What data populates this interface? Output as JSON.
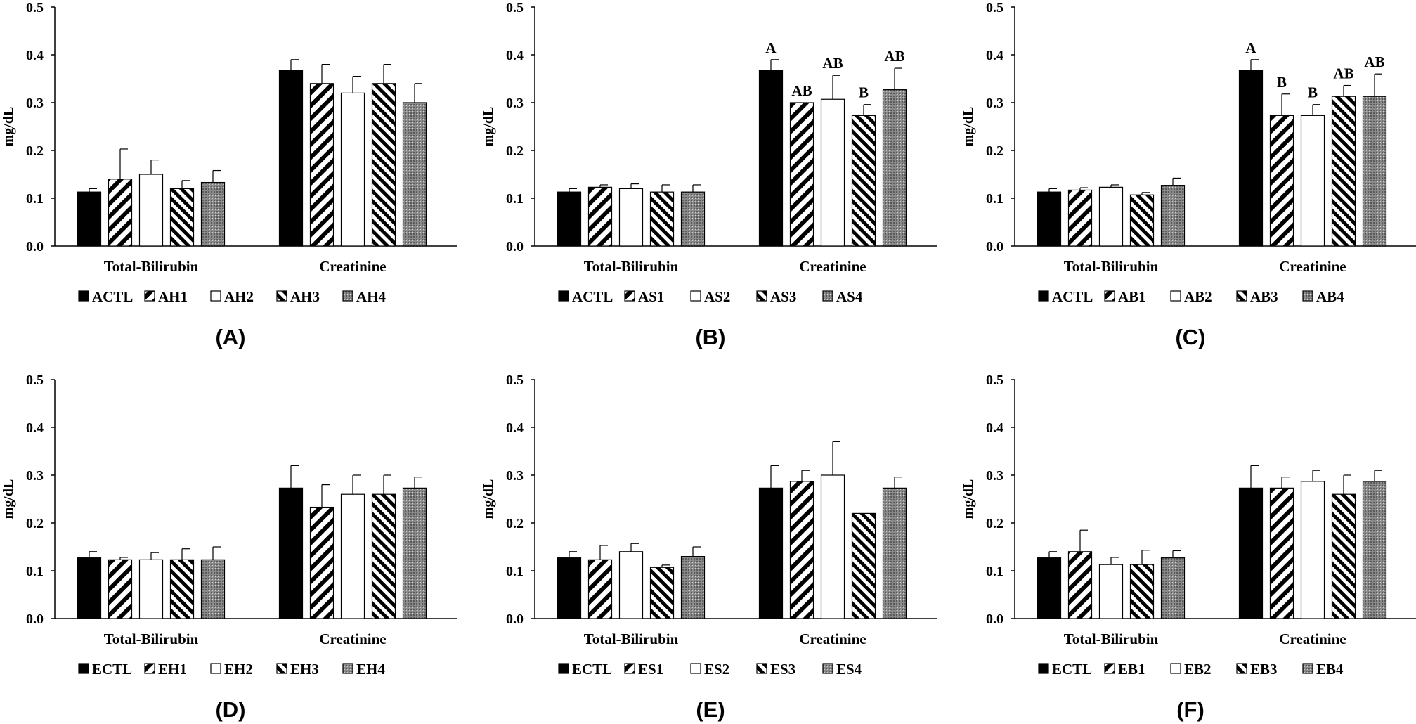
{
  "figure": {
    "colors": {
      "ink": "#000000",
      "background": "#ffffff",
      "dotted_fill": "#8a8a8a"
    },
    "pattern_names": [
      "solid-black",
      "wide-diagonal-forward",
      "white",
      "diagonal-backward",
      "dotted-gray"
    ]
  },
  "chart_data": [
    {
      "id": "A",
      "type": "bar",
      "title": "(A)",
      "ylabel": "mg/dL",
      "ylim": [
        0,
        0.5
      ],
      "yticks": [
        "0.0",
        "0.1",
        "0.2",
        "0.3",
        "0.4",
        "0.5"
      ],
      "categories": [
        "Total-Bilirubin",
        "Creatinine"
      ],
      "series": [
        {
          "name": "ACTL",
          "values": [
            0.113,
            0.367
          ],
          "errors": [
            0.007,
            0.023
          ],
          "labels": [
            "",
            ""
          ]
        },
        {
          "name": "AH1",
          "values": [
            0.14,
            0.34
          ],
          "errors": [
            0.063,
            0.04
          ],
          "labels": [
            "",
            ""
          ]
        },
        {
          "name": "AH2",
          "values": [
            0.15,
            0.32
          ],
          "errors": [
            0.03,
            0.035
          ],
          "labels": [
            "",
            ""
          ]
        },
        {
          "name": "AH3",
          "values": [
            0.12,
            0.34
          ],
          "errors": [
            0.017,
            0.04
          ],
          "labels": [
            "",
            ""
          ]
        },
        {
          "name": "AH4",
          "values": [
            0.133,
            0.3
          ],
          "errors": [
            0.025,
            0.04
          ],
          "labels": [
            "",
            ""
          ]
        }
      ]
    },
    {
      "id": "B",
      "type": "bar",
      "title": "(B)",
      "ylabel": "mg/dL",
      "ylim": [
        0,
        0.5
      ],
      "yticks": [
        "0.0",
        "0.1",
        "0.2",
        "0.3",
        "0.4",
        "0.5"
      ],
      "categories": [
        "Total-Bilirubin",
        "Creatinine"
      ],
      "series": [
        {
          "name": "ACTL",
          "values": [
            0.113,
            0.367
          ],
          "errors": [
            0.007,
            0.023
          ],
          "labels": [
            "",
            "A"
          ]
        },
        {
          "name": "AS1",
          "values": [
            0.123,
            0.3
          ],
          "errors": [
            0.005,
            0.0
          ],
          "labels": [
            "",
            "AB"
          ]
        },
        {
          "name": "AS2",
          "values": [
            0.12,
            0.307
          ],
          "errors": [
            0.01,
            0.05
          ],
          "labels": [
            "",
            "AB"
          ]
        },
        {
          "name": "AS3",
          "values": [
            0.113,
            0.273
          ],
          "errors": [
            0.015,
            0.023
          ],
          "labels": [
            "",
            "B"
          ]
        },
        {
          "name": "AS4",
          "values": [
            0.113,
            0.327
          ],
          "errors": [
            0.015,
            0.045
          ],
          "labels": [
            "",
            "AB"
          ]
        }
      ]
    },
    {
      "id": "C",
      "type": "bar",
      "title": "(C)",
      "ylabel": "mg/dL",
      "ylim": [
        0,
        0.5
      ],
      "yticks": [
        "0.0",
        "0.1",
        "0.2",
        "0.3",
        "0.4",
        "0.5"
      ],
      "categories": [
        "Total-Bilirubin",
        "Creatinine"
      ],
      "series": [
        {
          "name": "ACTL",
          "values": [
            0.113,
            0.367
          ],
          "errors": [
            0.007,
            0.023
          ],
          "labels": [
            "",
            "A"
          ]
        },
        {
          "name": "AB1",
          "values": [
            0.117,
            0.273
          ],
          "errors": [
            0.005,
            0.045
          ],
          "labels": [
            "",
            "B"
          ]
        },
        {
          "name": "AB2",
          "values": [
            0.123,
            0.273
          ],
          "errors": [
            0.005,
            0.023
          ],
          "labels": [
            "",
            "B"
          ]
        },
        {
          "name": "AB3",
          "values": [
            0.107,
            0.313
          ],
          "errors": [
            0.005,
            0.023
          ],
          "labels": [
            "",
            "AB"
          ]
        },
        {
          "name": "AB4",
          "values": [
            0.127,
            0.313
          ],
          "errors": [
            0.015,
            0.047
          ],
          "labels": [
            "",
            "AB"
          ]
        }
      ]
    },
    {
      "id": "D",
      "type": "bar",
      "title": "(D)",
      "ylabel": "mg/dL",
      "ylim": [
        0,
        0.5
      ],
      "yticks": [
        "0.0",
        "0.1",
        "0.2",
        "0.3",
        "0.4",
        "0.5"
      ],
      "categories": [
        "Total-Bilirubin",
        "Creatinine"
      ],
      "series": [
        {
          "name": "ECTL",
          "values": [
            0.127,
            0.273
          ],
          "errors": [
            0.013,
            0.047
          ],
          "labels": [
            "",
            ""
          ]
        },
        {
          "name": "EH1",
          "values": [
            0.123,
            0.233
          ],
          "errors": [
            0.005,
            0.047
          ],
          "labels": [
            "",
            ""
          ]
        },
        {
          "name": "EH2",
          "values": [
            0.123,
            0.26
          ],
          "errors": [
            0.015,
            0.04
          ],
          "labels": [
            "",
            ""
          ]
        },
        {
          "name": "EH3",
          "values": [
            0.123,
            0.26
          ],
          "errors": [
            0.023,
            0.04
          ],
          "labels": [
            "",
            ""
          ]
        },
        {
          "name": "EH4",
          "values": [
            0.123,
            0.273
          ],
          "errors": [
            0.027,
            0.023
          ],
          "labels": [
            "",
            ""
          ]
        }
      ]
    },
    {
      "id": "E",
      "type": "bar",
      "title": "(E)",
      "ylabel": "mg/dL",
      "ylim": [
        0,
        0.5
      ],
      "yticks": [
        "0.0",
        "0.1",
        "0.2",
        "0.3",
        "0.4",
        "0.5"
      ],
      "categories": [
        "Total-Bilirubin",
        "Creatinine"
      ],
      "series": [
        {
          "name": "ECTL",
          "values": [
            0.127,
            0.273
          ],
          "errors": [
            0.013,
            0.047
          ],
          "labels": [
            "",
            ""
          ]
        },
        {
          "name": "ES1",
          "values": [
            0.123,
            0.287
          ],
          "errors": [
            0.03,
            0.023
          ],
          "labels": [
            "",
            ""
          ]
        },
        {
          "name": "ES2",
          "values": [
            0.14,
            0.3
          ],
          "errors": [
            0.017,
            0.07
          ],
          "labels": [
            "",
            ""
          ]
        },
        {
          "name": "ES3",
          "values": [
            0.107,
            0.22
          ],
          "errors": [
            0.005,
            0.0
          ],
          "labels": [
            "",
            ""
          ]
        },
        {
          "name": "ES4",
          "values": [
            0.13,
            0.273
          ],
          "errors": [
            0.02,
            0.023
          ],
          "labels": [
            "",
            ""
          ]
        }
      ]
    },
    {
      "id": "F",
      "type": "bar",
      "title": "(F)",
      "ylabel": "mg/dL",
      "ylim": [
        0,
        0.5
      ],
      "yticks": [
        "0.0",
        "0.1",
        "0.2",
        "0.3",
        "0.4",
        "0.5"
      ],
      "categories": [
        "Total-Bilirubin",
        "Creatinine"
      ],
      "series": [
        {
          "name": "ECTL",
          "values": [
            0.127,
            0.273
          ],
          "errors": [
            0.013,
            0.047
          ],
          "labels": [
            "",
            ""
          ]
        },
        {
          "name": "EB1",
          "values": [
            0.14,
            0.273
          ],
          "errors": [
            0.045,
            0.023
          ],
          "labels": [
            "",
            ""
          ]
        },
        {
          "name": "EB2",
          "values": [
            0.113,
            0.287
          ],
          "errors": [
            0.015,
            0.023
          ],
          "labels": [
            "",
            ""
          ]
        },
        {
          "name": "EB3",
          "values": [
            0.113,
            0.26
          ],
          "errors": [
            0.03,
            0.04
          ],
          "labels": [
            "",
            ""
          ]
        },
        {
          "name": "EB4",
          "values": [
            0.127,
            0.287
          ],
          "errors": [
            0.015,
            0.023
          ],
          "labels": [
            "",
            ""
          ]
        }
      ]
    }
  ]
}
